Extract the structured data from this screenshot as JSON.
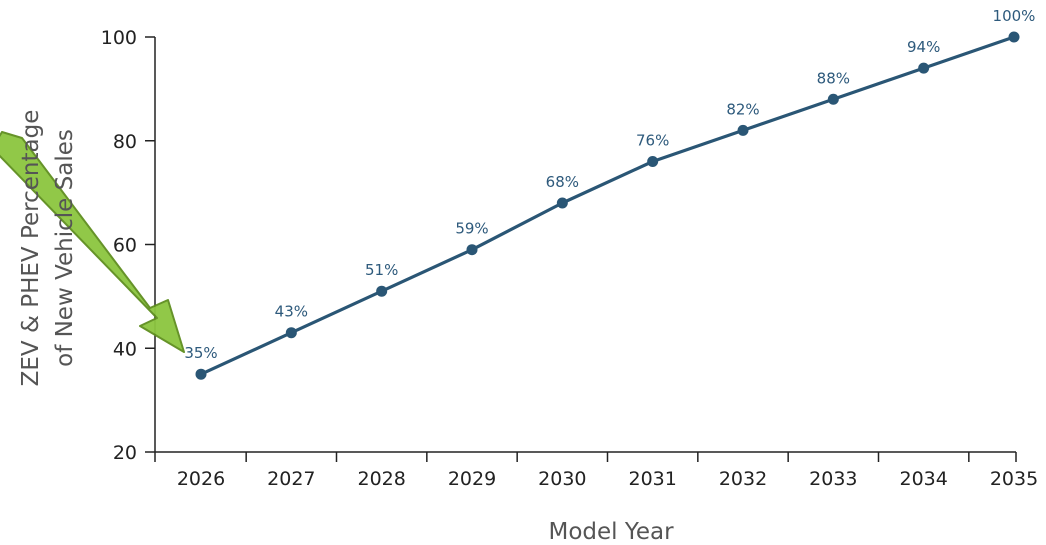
{
  "colors": {
    "line": "#2a5675",
    "label": "#2e5a7c",
    "axis": "#222222",
    "axis_title": "#555555",
    "arrow_fill": "#8cc63f",
    "arrow_stroke": "#5e8e1e"
  },
  "chart_data": {
    "type": "line",
    "title": "",
    "xlabel": "Model Year",
    "ylabel_line1": "ZEV & PHEV Percentage",
    "ylabel_line2": "of New Vehicle Sales",
    "categories": [
      "2026",
      "2027",
      "2028",
      "2029",
      "2030",
      "2031",
      "2032",
      "2033",
      "2034",
      "2035"
    ],
    "series": [
      {
        "values": [
          35,
          43,
          51,
          59,
          68,
          76,
          82,
          88,
          94,
          100
        ],
        "labels": [
          "35%",
          "43%",
          "51%",
          "59%",
          "68%",
          "76%",
          "82%",
          "88%",
          "94%",
          "100%"
        ]
      }
    ],
    "ylim": [
      20,
      100
    ],
    "yticks": [
      20,
      40,
      60,
      80,
      100
    ],
    "grid": false,
    "legend": "none"
  }
}
